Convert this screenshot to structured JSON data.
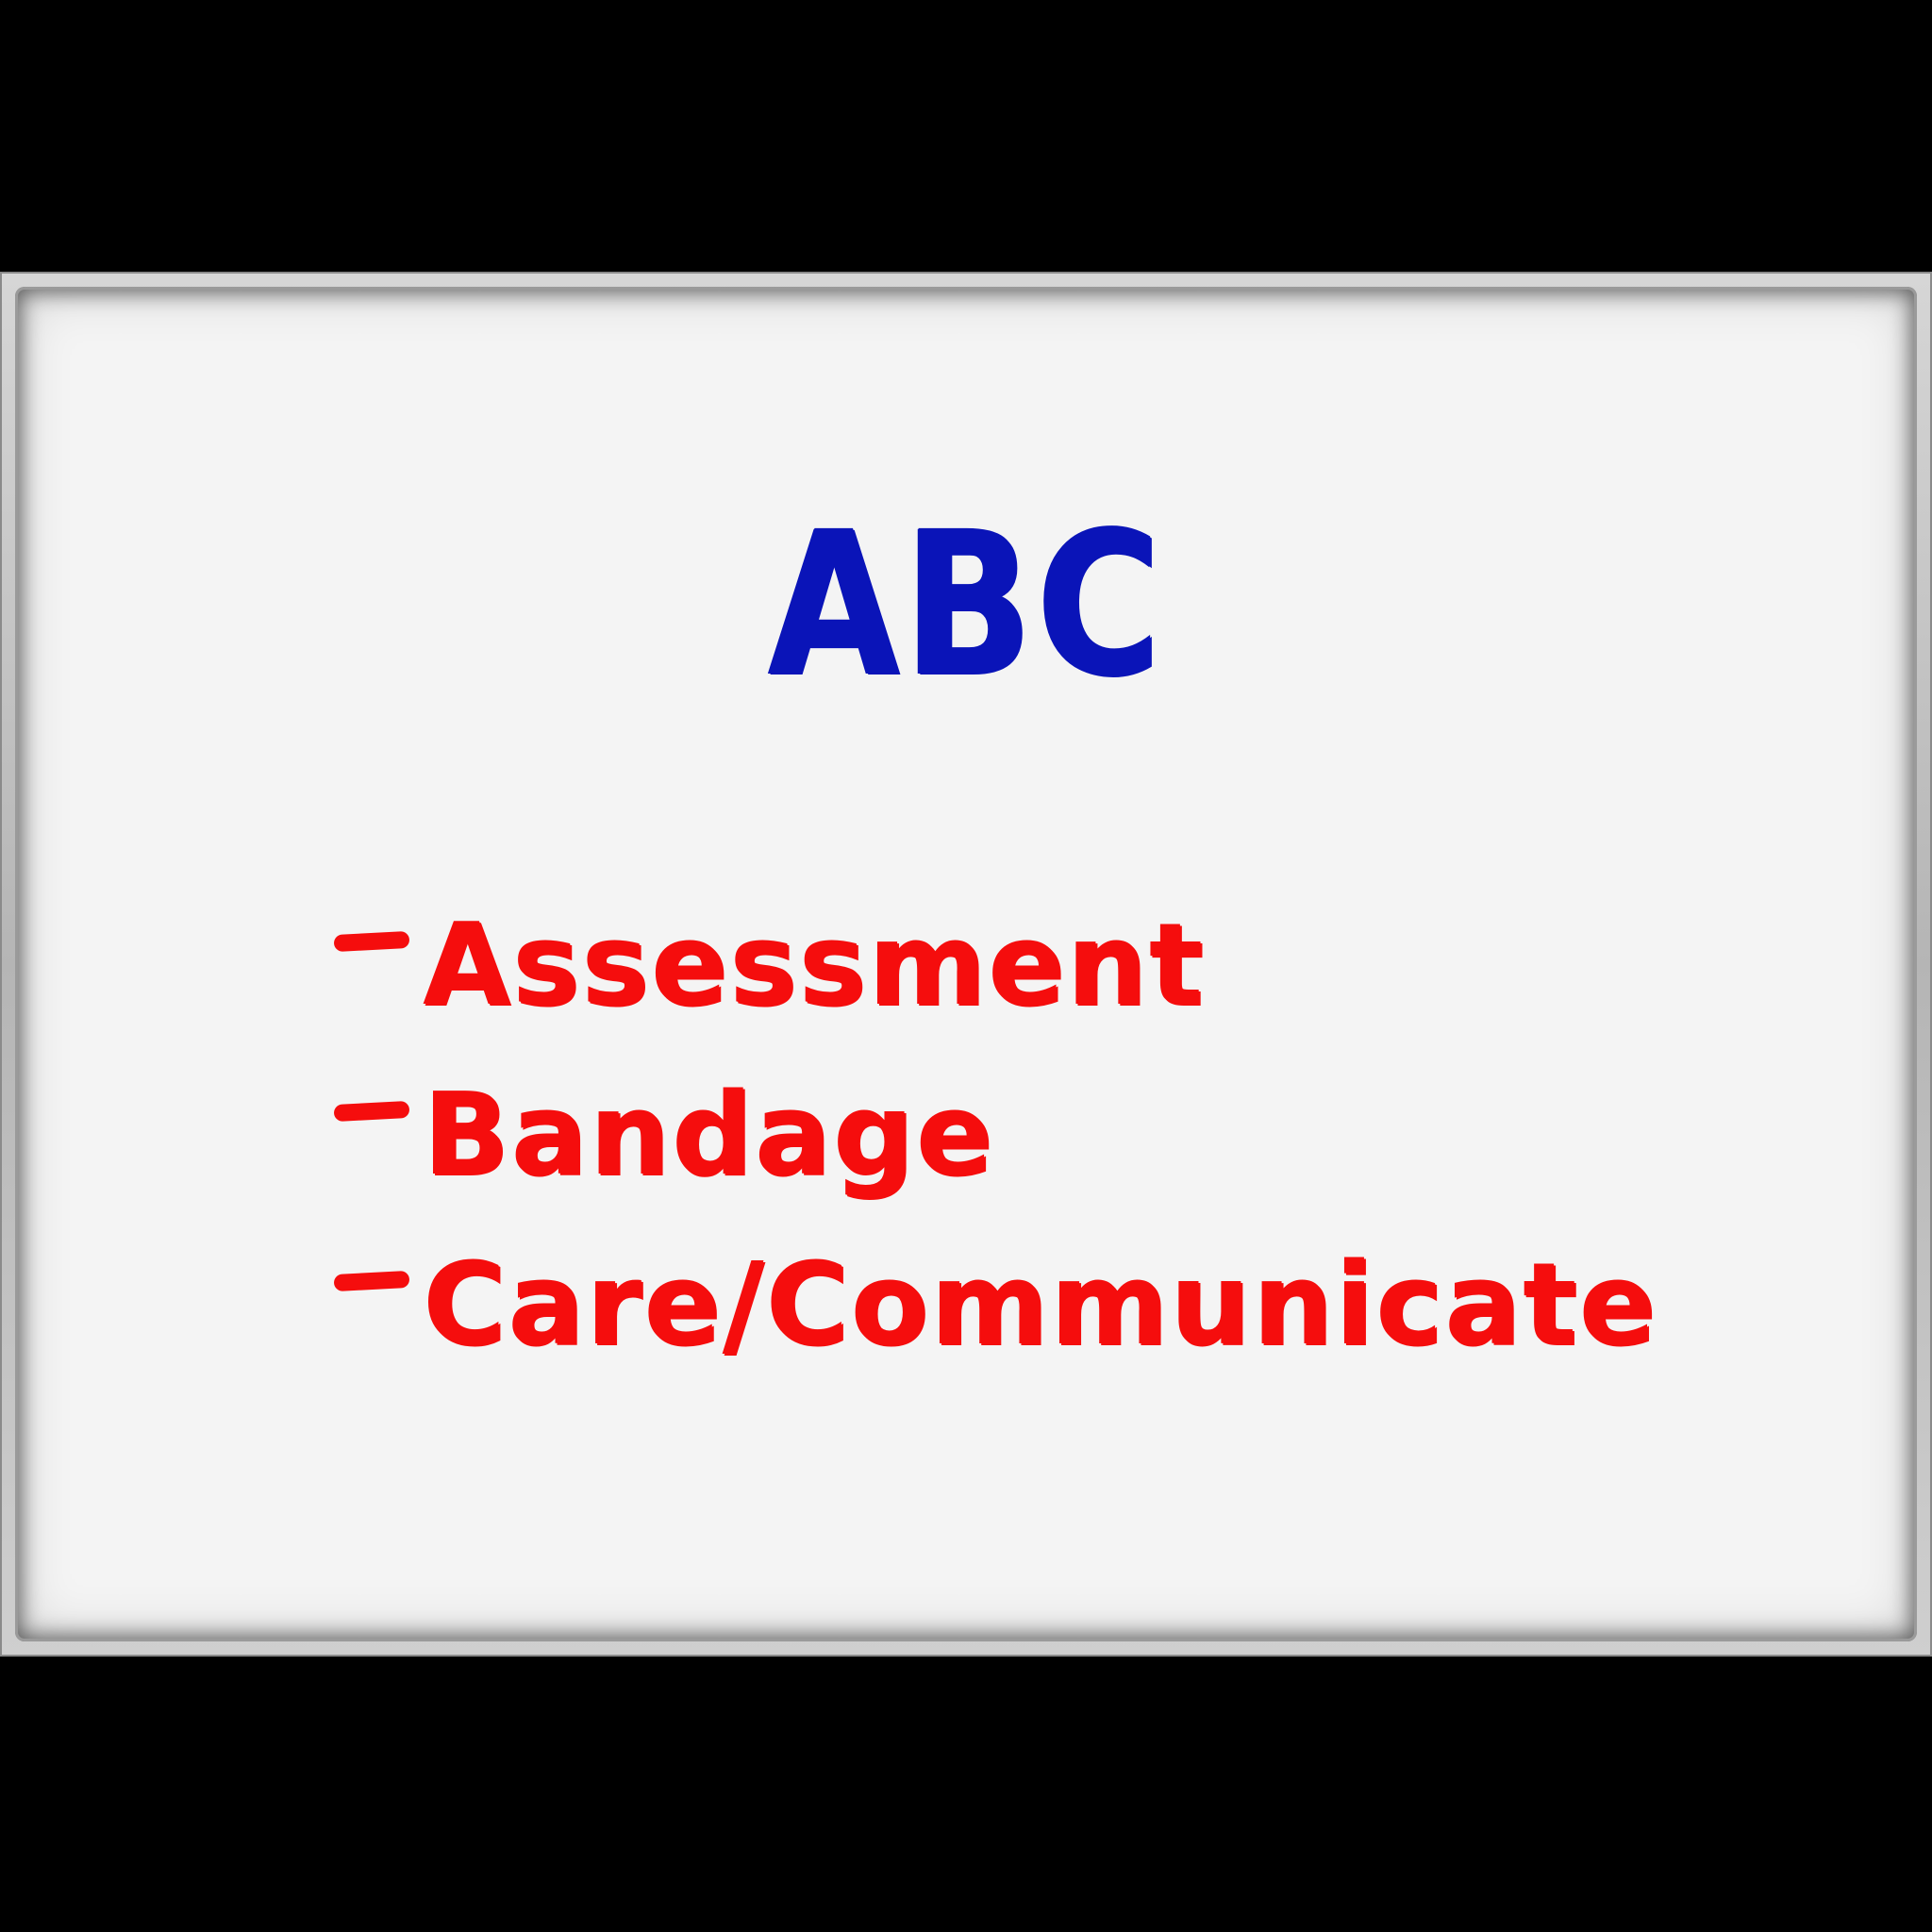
{
  "board": {
    "title": "ABC",
    "items": [
      {
        "dash": "-",
        "label": "Assessment"
      },
      {
        "dash": "-",
        "label": "Bandage"
      },
      {
        "dash": "-",
        "label": "Care/Communicate"
      }
    ]
  },
  "colors": {
    "title": "#0a14b8",
    "items": "#f50d0d",
    "board": "#f4f4f4",
    "background": "#000000"
  }
}
